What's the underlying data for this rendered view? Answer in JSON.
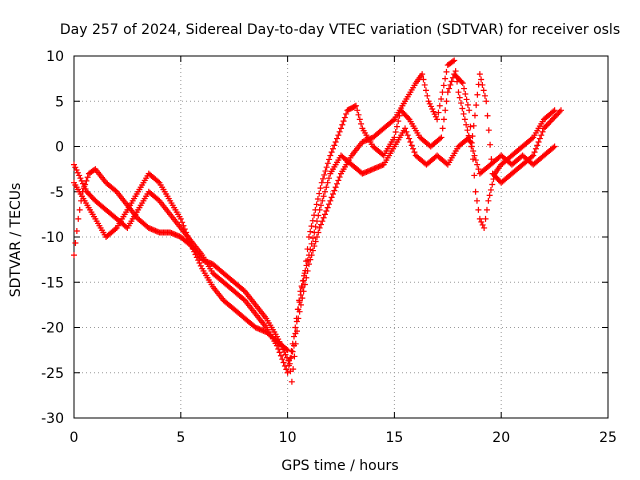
{
  "chart_data": {
    "type": "scatter",
    "title": "Day 257 of 2024, Sidereal Day-to-day VTEC variation (SDTVAR) for receiver osls",
    "xlabel": "GPS time / hours",
    "ylabel": "SDTVAR / TECUs",
    "xlim": [
      0,
      25
    ],
    "ylim": [
      -30,
      10
    ],
    "xticks": [
      "0",
      "5",
      "10",
      "15",
      "20",
      "25"
    ],
    "yticks": [
      "10",
      "5",
      "0",
      "-5",
      "-10",
      "-15",
      "-20",
      "-25",
      "-30"
    ],
    "grid": true,
    "marker": "+",
    "color": "#ff0000",
    "series": [
      {
        "values": [
          [
            0.0,
            -12
          ],
          [
            0.2,
            -8
          ],
          [
            0.4,
            -5
          ],
          [
            0.7,
            -3
          ],
          [
            1.0,
            -2.5
          ],
          [
            1.5,
            -4
          ],
          [
            2.0,
            -5
          ],
          [
            2.5,
            -6.5
          ],
          [
            3.0,
            -8
          ],
          [
            3.5,
            -9
          ],
          [
            4.0,
            -9.5
          ],
          [
            4.5,
            -9.5
          ],
          [
            5.0,
            -10
          ],
          [
            5.5,
            -11
          ],
          [
            6.0,
            -12.5
          ],
          [
            6.5,
            -13
          ],
          [
            7.0,
            -14
          ],
          [
            7.5,
            -15
          ],
          [
            8.0,
            -16
          ],
          [
            8.5,
            -17.5
          ],
          [
            9.0,
            -19
          ],
          [
            9.5,
            -21
          ],
          [
            9.9,
            -23
          ],
          [
            10.1,
            -24
          ],
          [
            10.3,
            -22
          ],
          [
            10.5,
            -18
          ],
          [
            10.8,
            -14
          ],
          [
            11.0,
            -10
          ],
          [
            11.3,
            -7
          ],
          [
            11.6,
            -4
          ],
          [
            12.0,
            -1
          ],
          [
            12.5,
            2
          ],
          [
            12.8,
            4
          ],
          [
            13.2,
            4.5
          ],
          [
            13.5,
            2
          ],
          [
            14.0,
            0
          ],
          [
            14.5,
            -1
          ],
          [
            15.0,
            1
          ],
          [
            15.3,
            4
          ],
          [
            15.7,
            3
          ],
          [
            16.2,
            1
          ],
          [
            16.7,
            0
          ],
          [
            17.2,
            1
          ],
          [
            17.5,
            6
          ],
          [
            17.8,
            8
          ],
          [
            18.2,
            7
          ],
          [
            18.5,
            4
          ],
          [
            18.8,
            -5
          ],
          [
            19.0,
            -8
          ],
          [
            19.2,
            -9
          ],
          [
            19.4,
            -6
          ],
          [
            19.7,
            -3
          ],
          [
            20.0,
            -2
          ],
          [
            20.5,
            -1
          ],
          [
            21.0,
            0
          ],
          [
            21.5,
            1
          ],
          [
            22.0,
            3
          ],
          [
            22.5,
            4
          ]
        ]
      },
      {
        "values": [
          [
            0.0,
            -2
          ],
          [
            0.3,
            -3.5
          ],
          [
            0.6,
            -5
          ],
          [
            1.0,
            -6
          ],
          [
            1.5,
            -7
          ],
          [
            2.0,
            -8
          ],
          [
            2.5,
            -9
          ],
          [
            3.0,
            -7
          ],
          [
            3.5,
            -5
          ],
          [
            4.0,
            -6
          ],
          [
            4.5,
            -7.5
          ],
          [
            5.0,
            -9
          ],
          [
            5.5,
            -10.5
          ],
          [
            6.0,
            -12
          ],
          [
            6.5,
            -14
          ],
          [
            7.0,
            -15
          ],
          [
            7.5,
            -16
          ],
          [
            8.0,
            -17
          ],
          [
            8.5,
            -18.5
          ],
          [
            9.0,
            -20
          ],
          [
            9.5,
            -22
          ],
          [
            10.0,
            -25
          ],
          [
            10.3,
            -21
          ],
          [
            10.6,
            -16
          ],
          [
            11.0,
            -12
          ],
          [
            11.5,
            -7
          ],
          [
            12.0,
            -3
          ],
          [
            12.5,
            -1
          ],
          [
            13.0,
            -2
          ],
          [
            13.5,
            -3
          ],
          [
            14.0,
            -2.5
          ],
          [
            14.5,
            -2
          ],
          [
            15.0,
            0
          ],
          [
            15.5,
            2
          ],
          [
            16.0,
            -1
          ],
          [
            16.5,
            -2
          ],
          [
            17.0,
            -1
          ],
          [
            17.5,
            -2
          ],
          [
            18.0,
            0
          ],
          [
            18.5,
            1
          ],
          [
            19.0,
            -3
          ],
          [
            19.5,
            -2
          ],
          [
            20.0,
            -1
          ],
          [
            20.5,
            -2
          ],
          [
            21.0,
            -1
          ],
          [
            21.5,
            -2
          ],
          [
            22.0,
            -1
          ],
          [
            22.5,
            0
          ]
        ]
      },
      {
        "values": [
          [
            0.0,
            -4
          ],
          [
            0.5,
            -6
          ],
          [
            1.0,
            -8
          ],
          [
            1.5,
            -10
          ],
          [
            2.0,
            -9
          ],
          [
            2.5,
            -7
          ],
          [
            3.0,
            -5
          ],
          [
            3.5,
            -3
          ],
          [
            4.0,
            -4
          ],
          [
            4.5,
            -6
          ],
          [
            5.0,
            -8
          ],
          [
            5.5,
            -11
          ],
          [
            6.0,
            -13.5
          ],
          [
            6.5,
            -15.5
          ],
          [
            7.0,
            -17
          ],
          [
            7.5,
            -18
          ],
          [
            8.0,
            -19
          ],
          [
            8.5,
            -20
          ],
          [
            9.0,
            -20.5
          ],
          [
            9.5,
            -21.5
          ],
          [
            10.0,
            -22.5
          ],
          [
            10.2,
            -26
          ],
          [
            10.5,
            -19
          ],
          [
            11.0,
            -13
          ],
          [
            11.5,
            -9
          ],
          [
            12.0,
            -6
          ],
          [
            12.5,
            -3
          ],
          [
            13.0,
            -1
          ],
          [
            13.5,
            0.5
          ],
          [
            14.0,
            1
          ],
          [
            14.5,
            2
          ],
          [
            15.0,
            3
          ],
          [
            15.5,
            5
          ],
          [
            16.0,
            7
          ],
          [
            16.3,
            8
          ],
          [
            16.6,
            5
          ],
          [
            17.0,
            3
          ],
          [
            17.5,
            9
          ],
          [
            17.8,
            9.5
          ],
          [
            18.0,
            6
          ],
          [
            18.3,
            3
          ],
          [
            18.6,
            0
          ],
          [
            19.0,
            8
          ],
          [
            19.3,
            5
          ],
          [
            19.6,
            -3
          ],
          [
            20.0,
            -4
          ],
          [
            20.5,
            -3
          ],
          [
            21.0,
            -2
          ],
          [
            21.5,
            -1
          ],
          [
            22.0,
            2
          ],
          [
            22.8,
            4
          ]
        ]
      }
    ]
  }
}
